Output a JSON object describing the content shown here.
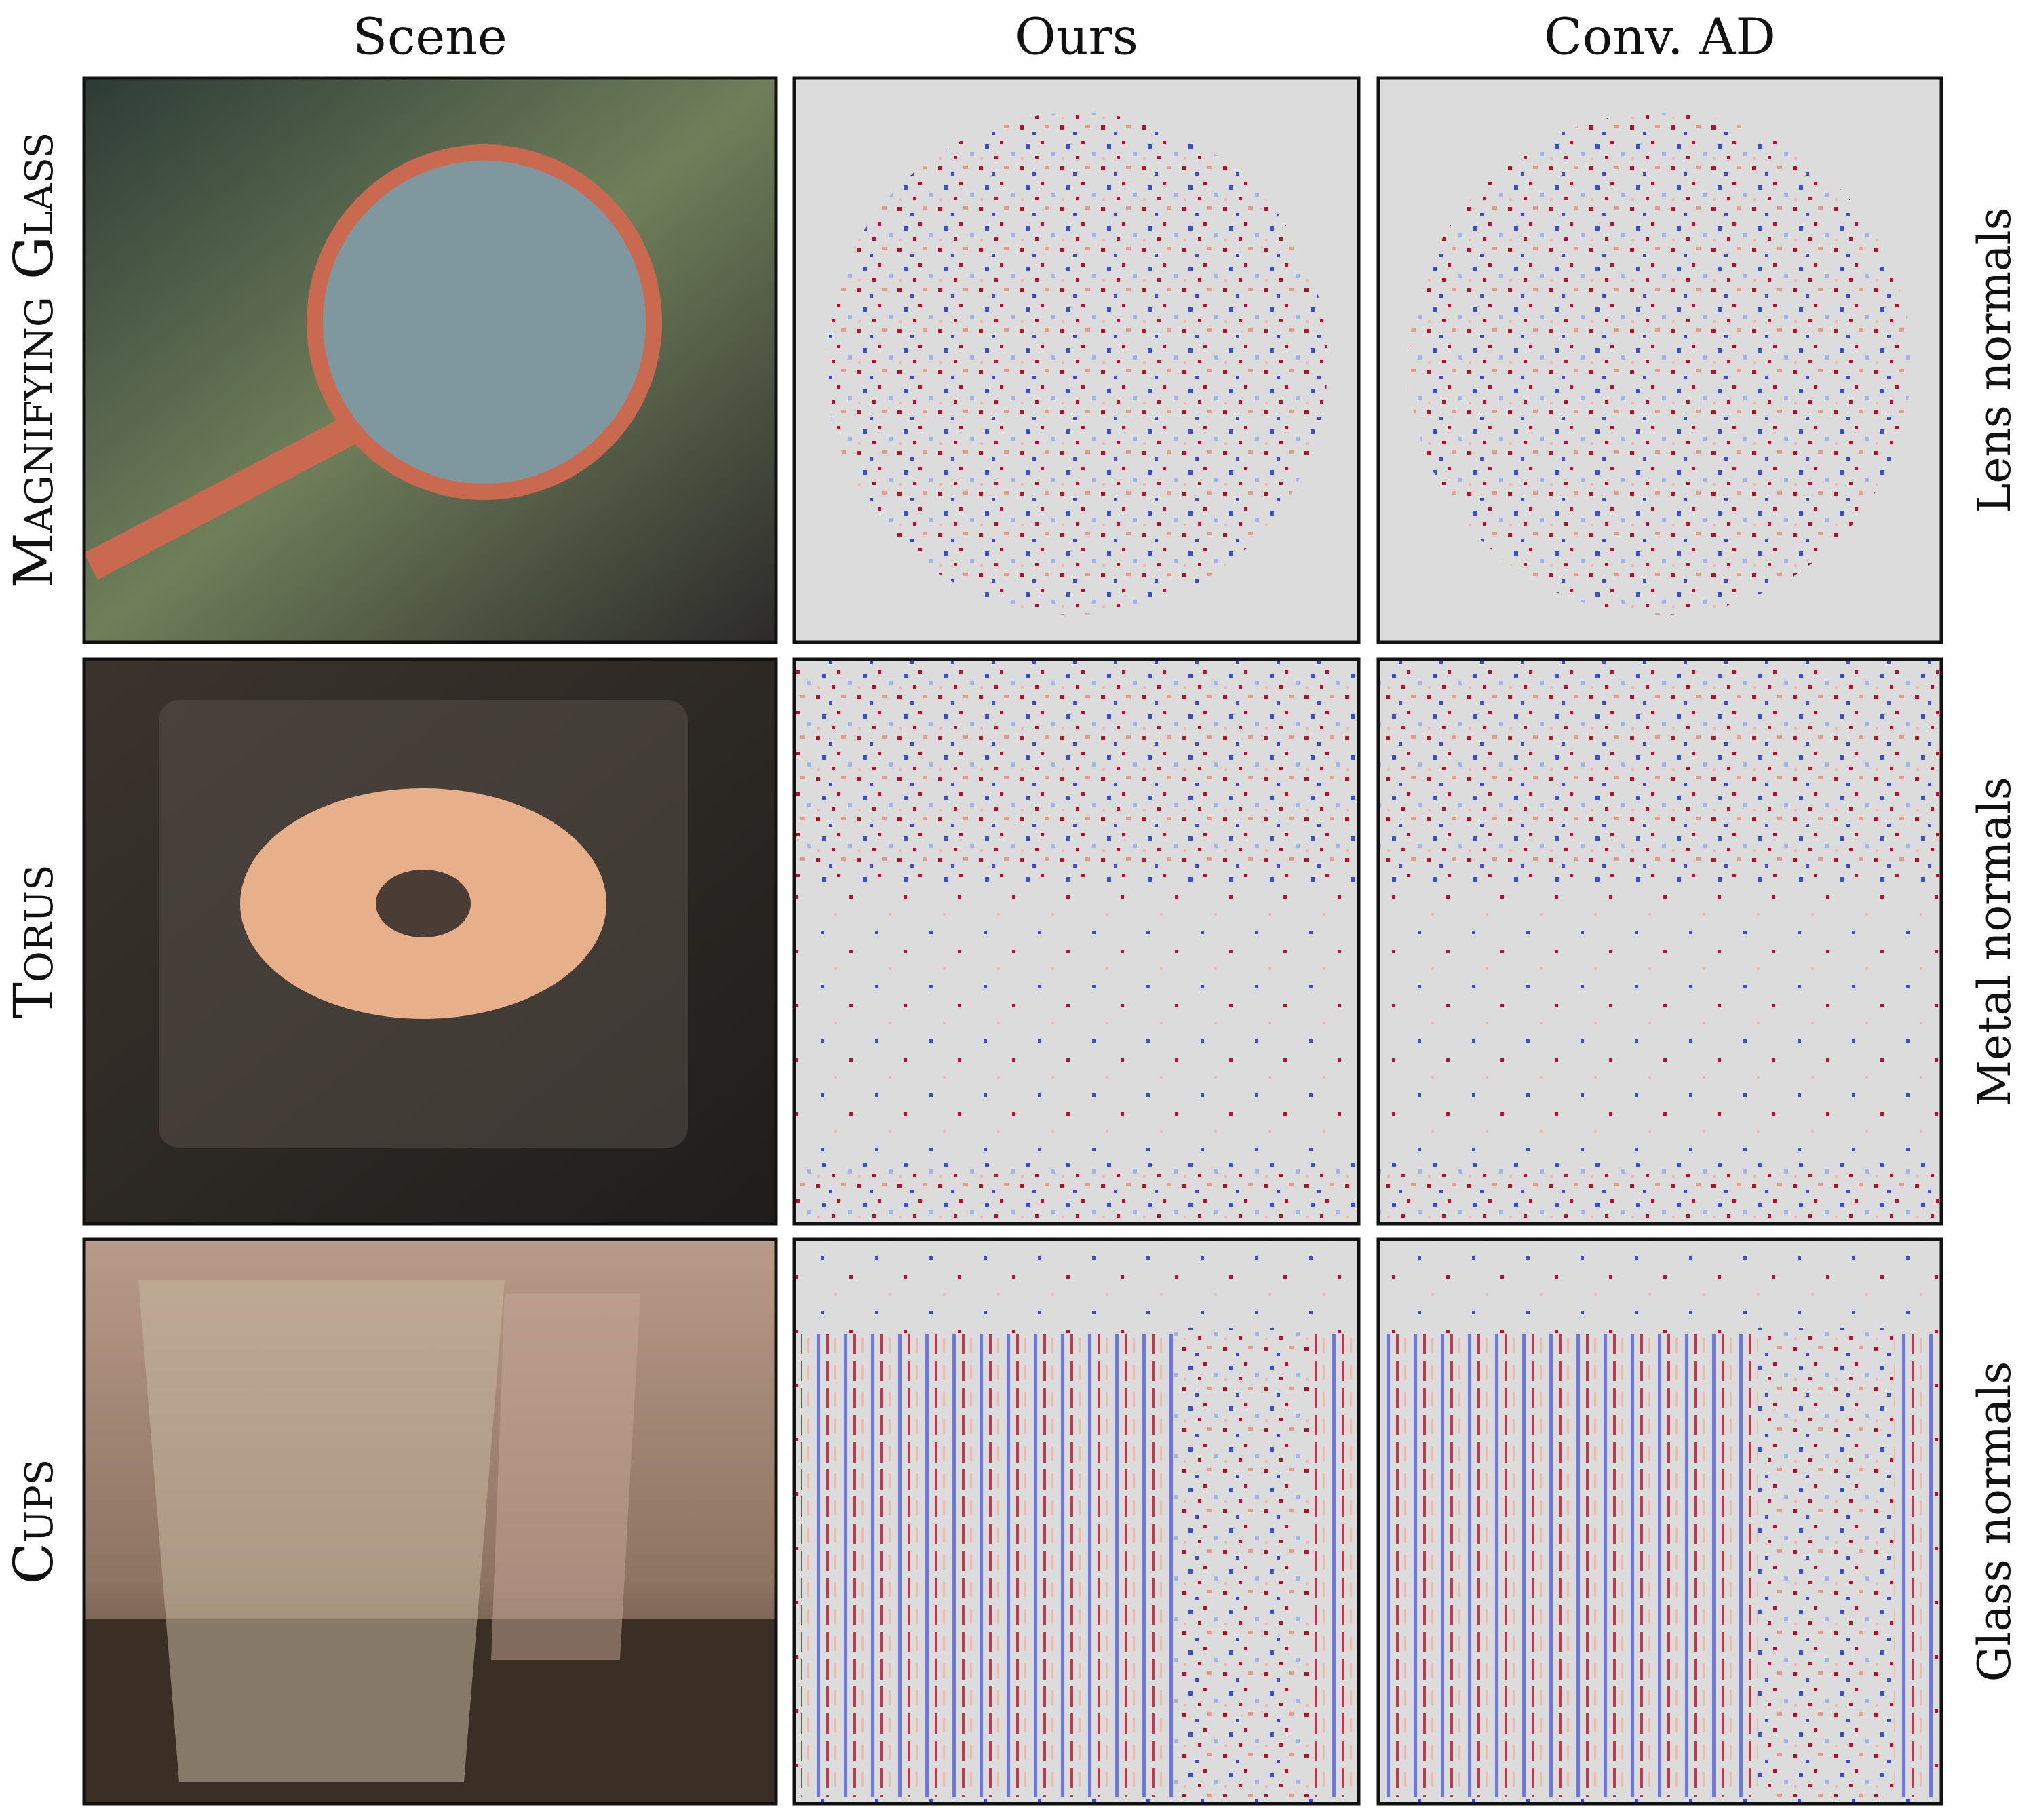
{
  "columns": [
    "Scene",
    "Ours",
    "Conv. AD"
  ],
  "rows": [
    {
      "label": "Magnifying Glass",
      "side_label": "Lens normals"
    },
    {
      "label": "Torus",
      "side_label": "Metal normals"
    },
    {
      "label": "Cups",
      "side_label": "Glass normals"
    }
  ]
}
